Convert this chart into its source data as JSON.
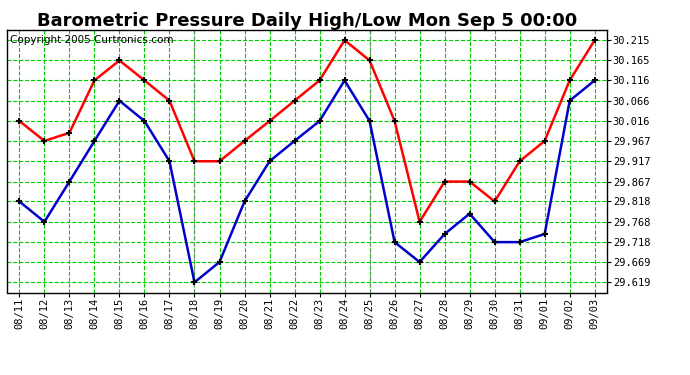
{
  "title": "Barometric Pressure Daily High/Low Mon Sep 5 00:00",
  "copyright": "Copyright 2005 Curtronics.com",
  "x_labels": [
    "08/11",
    "08/12",
    "08/13",
    "08/14",
    "08/15",
    "08/16",
    "08/17",
    "08/18",
    "08/19",
    "08/20",
    "08/21",
    "08/22",
    "08/23",
    "08/24",
    "08/25",
    "08/26",
    "08/27",
    "08/28",
    "08/29",
    "08/30",
    "08/31",
    "09/01",
    "09/02",
    "09/03"
  ],
  "high_values": [
    30.016,
    29.967,
    29.987,
    30.116,
    30.165,
    30.116,
    30.066,
    29.917,
    29.917,
    29.967,
    30.016,
    30.066,
    30.116,
    30.215,
    30.165,
    30.016,
    29.768,
    29.867,
    29.867,
    29.818,
    29.917,
    29.967,
    30.116,
    30.215
  ],
  "low_values": [
    29.818,
    29.768,
    29.867,
    29.967,
    30.066,
    30.016,
    29.917,
    29.619,
    29.669,
    29.818,
    29.917,
    29.967,
    30.016,
    30.116,
    30.016,
    29.718,
    29.669,
    29.738,
    29.788,
    29.718,
    29.718,
    29.738,
    30.066,
    30.116
  ],
  "high_color": "#ff0000",
  "low_color": "#0000cc",
  "bg_color": "#ffffff",
  "grid_major_color": "#00cc00",
  "grid_minor_color": "#00cc00",
  "yticks": [
    29.619,
    29.669,
    29.718,
    29.768,
    29.818,
    29.867,
    29.917,
    29.967,
    30.016,
    30.066,
    30.116,
    30.165,
    30.215
  ],
  "ymin": 29.594,
  "ymax": 30.24,
  "title_fontsize": 13,
  "copyright_fontsize": 7.5,
  "tick_fontsize": 7.5,
  "linewidth": 1.8,
  "markersize": 5
}
